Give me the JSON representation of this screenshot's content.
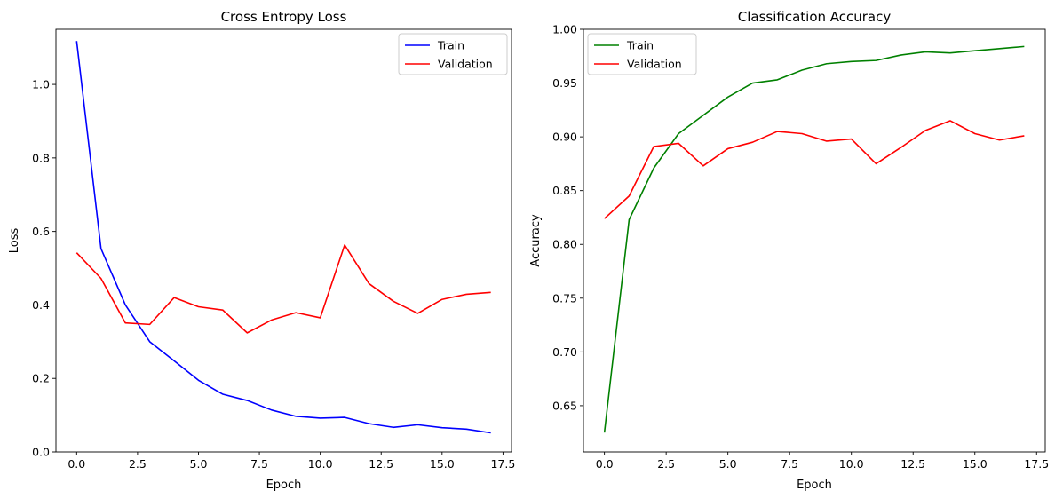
{
  "chart_data": [
    {
      "type": "line",
      "title": "Cross Entropy Loss",
      "xlabel": "Epoch",
      "ylabel": "Loss",
      "xlim": [
        -0.85,
        17.85
      ],
      "ylim": [
        0.0,
        1.15
      ],
      "xticks": [
        0.0,
        2.5,
        5.0,
        7.5,
        10.0,
        12.5,
        15.0,
        17.5
      ],
      "xtick_labels": [
        "0.0",
        "2.5",
        "5.0",
        "7.5",
        "10.0",
        "12.5",
        "15.0",
        "17.5"
      ],
      "yticks": [
        0.0,
        0.2,
        0.4,
        0.6,
        0.8,
        1.0
      ],
      "ytick_labels": [
        "0.0",
        "0.2",
        "0.4",
        "0.6",
        "0.8",
        "1.0"
      ],
      "grid": false,
      "legend_position": "top-right",
      "x": [
        0,
        1,
        2,
        3,
        4,
        5,
        6,
        7,
        8,
        9,
        10,
        11,
        12,
        13,
        14,
        15,
        16,
        17
      ],
      "series": [
        {
          "name": "Train",
          "color": "#0000ff",
          "values": [
            1.118,
            0.553,
            0.4,
            0.3,
            0.248,
            0.195,
            0.157,
            0.14,
            0.114,
            0.097,
            0.092,
            0.094,
            0.077,
            0.067,
            0.074,
            0.066,
            0.062,
            0.052
          ]
        },
        {
          "name": "Validation",
          "color": "#ff0000",
          "values": [
            0.542,
            0.472,
            0.351,
            0.347,
            0.42,
            0.395,
            0.386,
            0.324,
            0.359,
            0.379,
            0.365,
            0.563,
            0.458,
            0.41,
            0.377,
            0.415,
            0.429,
            0.434
          ]
        }
      ]
    },
    {
      "type": "line",
      "title": "Classification Accuracy",
      "xlabel": "Epoch",
      "ylabel": "Accuracy",
      "xlim": [
        -0.85,
        17.85
      ],
      "ylim": [
        0.607,
        1.0
      ],
      "xticks": [
        0.0,
        2.5,
        5.0,
        7.5,
        10.0,
        12.5,
        15.0,
        17.5
      ],
      "xtick_labels": [
        "0.0",
        "2.5",
        "5.0",
        "7.5",
        "10.0",
        "12.5",
        "15.0",
        "17.5"
      ],
      "yticks": [
        0.65,
        0.7,
        0.75,
        0.8,
        0.85,
        0.9,
        0.95,
        1.0
      ],
      "ytick_labels": [
        "0.65",
        "0.70",
        "0.75",
        "0.80",
        "0.85",
        "0.90",
        "0.95",
        "1.00"
      ],
      "grid": false,
      "legend_position": "top-left",
      "x": [
        0,
        1,
        2,
        3,
        4,
        5,
        6,
        7,
        8,
        9,
        10,
        11,
        12,
        13,
        14,
        15,
        16,
        17
      ],
      "series": [
        {
          "name": "Train",
          "color": "#008000",
          "values": [
            0.625,
            0.823,
            0.871,
            0.903,
            0.92,
            0.937,
            0.95,
            0.953,
            0.962,
            0.968,
            0.97,
            0.971,
            0.976,
            0.979,
            0.978,
            0.98,
            0.982,
            0.984
          ]
        },
        {
          "name": "Validation",
          "color": "#ff0000",
          "values": [
            0.824,
            0.845,
            0.891,
            0.894,
            0.873,
            0.889,
            0.895,
            0.905,
            0.903,
            0.896,
            0.898,
            0.875,
            0.89,
            0.906,
            0.915,
            0.903,
            0.897,
            0.901
          ]
        }
      ]
    }
  ]
}
